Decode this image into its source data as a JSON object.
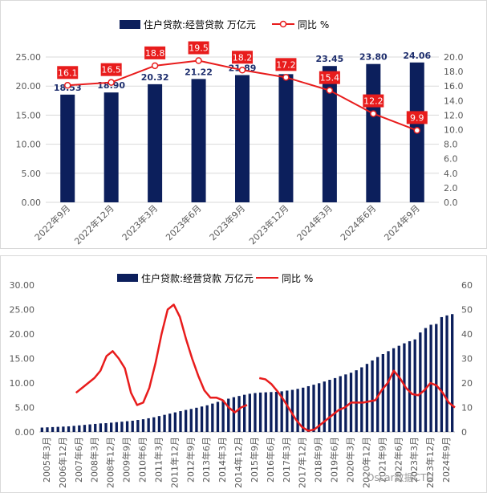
{
  "colors": {
    "bar": "#0c1f5c",
    "line": "#e81c1c",
    "label_box": "#e81c1c",
    "grid": "#d9d9d9",
    "tick": "#595959"
  },
  "watermark": "Oscar数据CTO",
  "chart_data": [
    {
      "type": "bar",
      "title": "",
      "legend": [
        "住户贷款:经营贷款 万亿元",
        "同比 %"
      ],
      "legend_position": "top",
      "categories": [
        "2022年9月",
        "2022年12月",
        "2023年3月",
        "2023年6月",
        "2023年9月",
        "2023年12月",
        "2024年3月",
        "2024年6月",
        "2024年9月"
      ],
      "series": [
        {
          "name": "住户贷款:经营贷款 万亿元",
          "type": "bar",
          "axis": "left",
          "values": [
            18.53,
            18.9,
            20.32,
            21.22,
            21.89,
            22.05,
            23.45,
            23.8,
            24.06
          ]
        },
        {
          "name": "同比 %",
          "type": "line",
          "axis": "right",
          "values": [
            16.1,
            16.5,
            18.8,
            19.5,
            18.2,
            17.2,
            15.4,
            12.2,
            9.9
          ]
        }
      ],
      "bar_labels": [
        "18.53",
        "18.90",
        "20.32",
        "21.22",
        "21.89",
        "",
        "23.45",
        "23.80",
        "24.06"
      ],
      "line_labels": [
        "16.1",
        "16.5",
        "18.8",
        "19.5",
        "18.2",
        "17.2",
        "15.4",
        "12.2",
        "9.9"
      ],
      "ylim": [
        0,
        25
      ],
      "yticks": [
        "0.00",
        "5.00",
        "10.00",
        "15.00",
        "20.00",
        "25.00"
      ],
      "y2lim": [
        0,
        20
      ],
      "y2ticks": [
        "0.0",
        "2.0",
        "4.0",
        "6.0",
        "8.0",
        "10.0",
        "12.0",
        "14.0",
        "16.0",
        "18.0",
        "20.0"
      ],
      "grid": true
    },
    {
      "type": "bar",
      "title": "",
      "legend": [
        "住户贷款:经营贷款 万亿元",
        "同比 %"
      ],
      "legend_position": "top",
      "x_tick_labels": [
        "2005年3月",
        "2006年12月",
        "2007年6月",
        "2008年3月",
        "2008年12月",
        "2009年9月",
        "2010年6月",
        "2011年3月",
        "2011年12月",
        "2012年9月",
        "2013年6月",
        "2014年3月",
        "2014年12月",
        "2015年9月",
        "2016年6月",
        "2017年3月",
        "2017年12月",
        "2018年9月",
        "2019年6月",
        "2020年3月",
        "2020年12月",
        "2021年9月",
        "2022年6月",
        "2023年3月",
        "2023年12月",
        "2024年9月"
      ],
      "series": [
        {
          "name": "住户贷款:经营贷款 万亿元",
          "type": "bar",
          "axis": "left",
          "values": [
            0.9,
            0.95,
            1.0,
            1.05,
            1.1,
            1.15,
            1.25,
            1.35,
            1.45,
            1.55,
            1.65,
            1.75,
            1.8,
            1.9,
            2.0,
            2.1,
            2.2,
            2.3,
            2.45,
            2.6,
            2.8,
            3.0,
            3.25,
            3.5,
            3.75,
            4.0,
            4.25,
            4.5,
            4.7,
            4.95,
            5.2,
            5.45,
            5.8,
            6.15,
            6.5,
            6.8,
            7.1,
            7.35,
            7.6,
            7.8,
            7.95,
            8.05,
            8.1,
            8.15,
            8.2,
            8.3,
            8.45,
            8.6,
            8.8,
            9.05,
            9.35,
            9.65,
            9.95,
            10.3,
            10.65,
            11.0,
            11.4,
            11.75,
            12.1,
            12.6,
            13.2,
            13.9,
            14.6,
            15.3,
            15.9,
            16.5,
            17.1,
            17.6,
            18.1,
            18.53,
            18.9,
            20.32,
            21.22,
            21.89,
            22.05,
            23.45,
            23.8,
            24.06
          ]
        },
        {
          "name": "同比 %",
          "type": "line",
          "axis": "right",
          "segments": [
            [
              [
                12,
                16
              ],
              [
                14,
                18
              ],
              [
                16,
                20
              ],
              [
                18,
                22
              ],
              [
                20,
                25
              ],
              [
                22,
                31
              ],
              [
                24,
                33
              ],
              [
                26,
                30
              ],
              [
                28,
                26
              ],
              [
                30,
                16
              ],
              [
                32,
                11
              ],
              [
                34,
                12
              ],
              [
                36,
                18
              ],
              [
                38,
                28
              ],
              [
                40,
                40
              ],
              [
                42,
                50
              ],
              [
                44,
                52
              ],
              [
                46,
                47
              ],
              [
                48,
                38
              ],
              [
                50,
                30
              ],
              [
                52,
                23
              ],
              [
                54,
                17
              ],
              [
                56,
                14
              ],
              [
                58,
                14
              ],
              [
                60,
                13
              ],
              [
                62,
                10
              ],
              [
                64,
                8
              ],
              [
                66,
                10
              ],
              [
                68,
                11
              ]
            ],
            [
              [
                72,
                22
              ],
              [
                74,
                21.5
              ],
              [
                76,
                19.5
              ],
              [
                78,
                16.5
              ],
              [
                80,
                13
              ],
              [
                82,
                9
              ],
              [
                84,
                5
              ],
              [
                86,
                2
              ],
              [
                88,
                0.5
              ],
              [
                90,
                1
              ],
              [
                92,
                3
              ],
              [
                94,
                5
              ],
              [
                96,
                7
              ],
              [
                98,
                9
              ],
              [
                100,
                10
              ],
              [
                102,
                12
              ],
              [
                104,
                12
              ],
              [
                106,
                12
              ],
              [
                108,
                12.5
              ],
              [
                110,
                13
              ],
              [
                112,
                17
              ],
              [
                114,
                20
              ],
              [
                116,
                25
              ],
              [
                118,
                22
              ],
              [
                120,
                18
              ],
              [
                122,
                15.5
              ],
              [
                124,
                15
              ],
              [
                126,
                17
              ],
              [
                128,
                20
              ],
              [
                130,
                19
              ],
              [
                132,
                16
              ],
              [
                134,
                12
              ],
              [
                136,
                10
              ]
            ]
          ]
        }
      ],
      "ylim": [
        0,
        30
      ],
      "yticks": [
        "0.00",
        "5.00",
        "10.00",
        "15.00",
        "20.00",
        "25.00",
        "30.00"
      ],
      "y2lim": [
        0,
        60
      ],
      "y2ticks": [
        "0",
        "10",
        "20",
        "30",
        "40",
        "50",
        "60"
      ],
      "grid": false
    }
  ]
}
